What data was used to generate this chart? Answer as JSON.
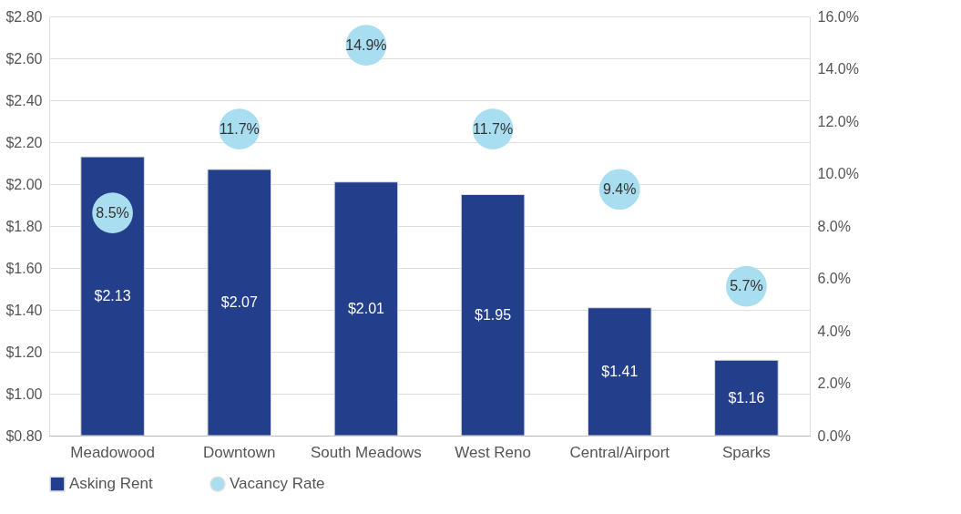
{
  "chart_data": {
    "type": "bar",
    "categories": [
      "Meadowood",
      "Downtown",
      "South Meadows",
      "West Reno",
      "Central/Airport",
      "Sparks"
    ],
    "series": [
      {
        "name": "Asking Rent",
        "color": "#233f8c",
        "values": [
          2.13,
          2.07,
          2.01,
          1.95,
          1.41,
          1.16
        ],
        "value_labels": [
          "$2.13",
          "$2.07",
          "$2.01",
          "$1.95",
          "$1.41",
          "$1.16"
        ]
      },
      {
        "name": "Vacancy Rate",
        "type": "scatter",
        "axis": "y2",
        "color": "#a9ddf0",
        "values": [
          8.5,
          11.7,
          14.9,
          11.7,
          9.4,
          5.7
        ],
        "value_labels": [
          "8.5%",
          "11.7%",
          "14.9%",
          "11.7%",
          "9.4%",
          "5.7%"
        ]
      }
    ],
    "ylim": [
      0.8,
      2.8
    ],
    "yticks": [
      {
        "value": 0.8,
        "label": "$0.80"
      },
      {
        "value": 1.0,
        "label": "$1.00"
      },
      {
        "value": 1.2,
        "label": "$1.20"
      },
      {
        "value": 1.4,
        "label": "$1.40"
      },
      {
        "value": 1.6,
        "label": "$1.60"
      },
      {
        "value": 1.8,
        "label": "$1.80"
      },
      {
        "value": 2.0,
        "label": "$2.00"
      },
      {
        "value": 2.2,
        "label": "$2.20"
      },
      {
        "value": 2.4,
        "label": "$2.40"
      },
      {
        "value": 2.6,
        "label": "$2.60"
      },
      {
        "value": 2.8,
        "label": "$2.80"
      }
    ],
    "y2lim": [
      0,
      16
    ],
    "y2ticks": [
      {
        "value": 0,
        "label": "0.0%"
      },
      {
        "value": 2,
        "label": "2.0%"
      },
      {
        "value": 4,
        "label": "4.0%"
      },
      {
        "value": 6,
        "label": "6.0%"
      },
      {
        "value": 8,
        "label": "8.0%"
      },
      {
        "value": 10,
        "label": "10.0%"
      },
      {
        "value": 12,
        "label": "12.0%"
      },
      {
        "value": 14,
        "label": "14.0%"
      },
      {
        "value": 16,
        "label": "16.0%"
      }
    ],
    "grid": "y",
    "legend": "bottom",
    "marker": "circle"
  }
}
